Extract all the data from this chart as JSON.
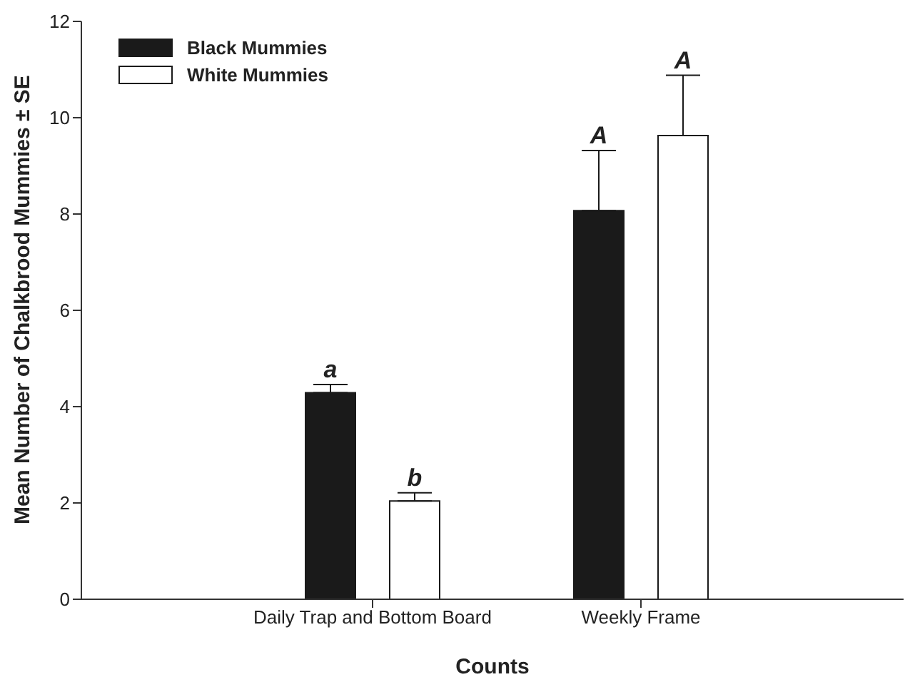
{
  "chart_data": {
    "type": "bar",
    "xlabel": "Counts",
    "ylabel": "Mean Number of Chalkbrood Mummies ± SE",
    "categories": [
      "Daily Trap and Bottom Board",
      "Weekly Frame"
    ],
    "series": [
      {
        "name": "Black Mummies",
        "color": "#1a1a1a",
        "values": [
          4.29,
          8.07
        ],
        "errors": [
          [
            4.29,
            4.46
          ],
          [
            8.07,
            9.32
          ]
        ]
      },
      {
        "name": "White Mummies",
        "color": "#ffffff",
        "values": [
          2.04,
          9.63
        ],
        "errors": [
          [
            2.04,
            2.21
          ],
          [
            9.63,
            10.88
          ]
        ]
      }
    ],
    "ylim": [
      0,
      12
    ],
    "yticks": [
      0,
      2,
      4,
      6,
      8,
      10,
      12
    ],
    "legend": "top left",
    "annotations": [
      "a",
      "b",
      "A",
      "A"
    ]
  }
}
